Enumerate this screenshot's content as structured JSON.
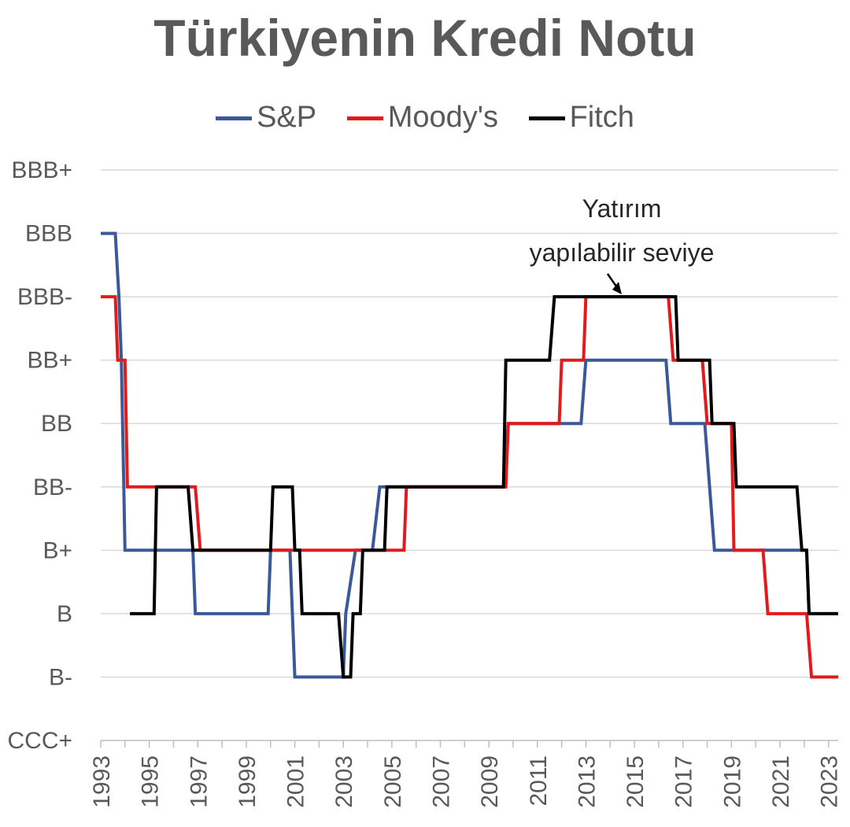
{
  "chart_data": {
    "type": "line",
    "title": "Türkiyenin Kredi Notu",
    "xlabel": "",
    "ylabel": "",
    "x_range": [
      1993,
      2023.4
    ],
    "x_ticks": [
      1993,
      1995,
      1997,
      1999,
      2001,
      2003,
      2005,
      2007,
      2009,
      2011,
      2013,
      2015,
      2017,
      2019,
      2021,
      2023
    ],
    "y_categories": [
      "CCC+",
      "B-",
      "B",
      "B+",
      "BB-",
      "BB",
      "BB+",
      "BBB-",
      "BBB",
      "BBB+"
    ],
    "grid": true,
    "legend_position": "top",
    "annotation": {
      "lines": [
        "Yatırım",
        "yapılabilir seviye"
      ],
      "target": [
        2015,
        "BBB-"
      ]
    },
    "series": [
      {
        "name": "S&P",
        "color": "#3B5998",
        "points": [
          [
            1993,
            "BBB"
          ],
          [
            1993.6,
            "BBB"
          ],
          [
            1993.75,
            "BBB-"
          ],
          [
            1993.85,
            "BB+"
          ],
          [
            1993.95,
            "BB-"
          ],
          [
            1994,
            "B+"
          ],
          [
            1996.8,
            "B+"
          ],
          [
            1996.9,
            "B"
          ],
          [
            1999.9,
            "B"
          ],
          [
            2000,
            "B+"
          ],
          [
            2000.8,
            "B+"
          ],
          [
            2000.9,
            "B"
          ],
          [
            2001,
            "B-"
          ],
          [
            2003,
            "B-"
          ],
          [
            2003.1,
            "B"
          ],
          [
            2003.5,
            "B+"
          ],
          [
            2004.2,
            "B+"
          ],
          [
            2004.5,
            "BB-"
          ],
          [
            2009.6,
            "BB-"
          ],
          [
            2009.8,
            "BB"
          ],
          [
            2012.8,
            "BB"
          ],
          [
            2013,
            "BB+"
          ],
          [
            2016.3,
            "BB+"
          ],
          [
            2016.5,
            "BB"
          ],
          [
            2017.9,
            "BB"
          ],
          [
            2018.1,
            "BB-"
          ],
          [
            2018.3,
            "B+"
          ],
          [
            2022.1,
            "B+"
          ],
          [
            2022.2,
            "B"
          ],
          [
            2023.4,
            "B"
          ]
        ]
      },
      {
        "name": "Moody's",
        "color": "#E31A1C",
        "points": [
          [
            1993,
            "BBB-"
          ],
          [
            1993.6,
            "BBB-"
          ],
          [
            1993.7,
            "BB+"
          ],
          [
            1994,
            "BB+"
          ],
          [
            1994.1,
            "BB-"
          ],
          [
            1996.9,
            "BB-"
          ],
          [
            1997.1,
            "B+"
          ],
          [
            2000,
            "B+"
          ],
          [
            2003.5,
            "B+"
          ],
          [
            2003.6,
            "B+"
          ],
          [
            2005.5,
            "B+"
          ],
          [
            2005.6,
            "BB-"
          ],
          [
            2009.7,
            "BB-"
          ],
          [
            2009.8,
            "BB"
          ],
          [
            2011.9,
            "BB"
          ],
          [
            2012,
            "BB+"
          ],
          [
            2012.9,
            "BB+"
          ],
          [
            2013,
            "BBB-"
          ],
          [
            2016.4,
            "BBB-"
          ],
          [
            2016.6,
            "BB+"
          ],
          [
            2017.8,
            "BB+"
          ],
          [
            2018,
            "BB"
          ],
          [
            2019,
            "BB"
          ],
          [
            2019.1,
            "B+"
          ],
          [
            2020.3,
            "B+"
          ],
          [
            2020.5,
            "B"
          ],
          [
            2022.1,
            "B"
          ],
          [
            2022.3,
            "B-"
          ],
          [
            2023.4,
            "B-"
          ]
        ]
      },
      {
        "name": "Fitch",
        "color": "#000000",
        "points": [
          [
            1994.2,
            "B"
          ],
          [
            1995.2,
            "B"
          ],
          [
            1995.3,
            "BB-"
          ],
          [
            1996.6,
            "BB-"
          ],
          [
            1996.8,
            "B+"
          ],
          [
            2000,
            "B+"
          ],
          [
            2000.1,
            "BB-"
          ],
          [
            2000.9,
            "BB-"
          ],
          [
            2001,
            "B+"
          ],
          [
            2001.2,
            "B+"
          ],
          [
            2001.3,
            "B"
          ],
          [
            2002.8,
            "B"
          ],
          [
            2003,
            "B-"
          ],
          [
            2003.3,
            "B-"
          ],
          [
            2003.4,
            "B"
          ],
          [
            2003.7,
            "B"
          ],
          [
            2003.8,
            "B+"
          ],
          [
            2004.7,
            "B+"
          ],
          [
            2004.8,
            "BB-"
          ],
          [
            2009.6,
            "BB-"
          ],
          [
            2009.7,
            "BB+"
          ],
          [
            2011.5,
            "BB+"
          ],
          [
            2011.7,
            "BBB-"
          ],
          [
            2016.7,
            "BBB-"
          ],
          [
            2016.8,
            "BB+"
          ],
          [
            2018.1,
            "BB+"
          ],
          [
            2018.2,
            "BB"
          ],
          [
            2019.1,
            "BB"
          ],
          [
            2019.2,
            "BB-"
          ],
          [
            2021.7,
            "BB-"
          ],
          [
            2021.9,
            "B+"
          ],
          [
            2022.1,
            "B+"
          ],
          [
            2022.2,
            "B"
          ],
          [
            2023.4,
            "B"
          ]
        ]
      }
    ]
  }
}
